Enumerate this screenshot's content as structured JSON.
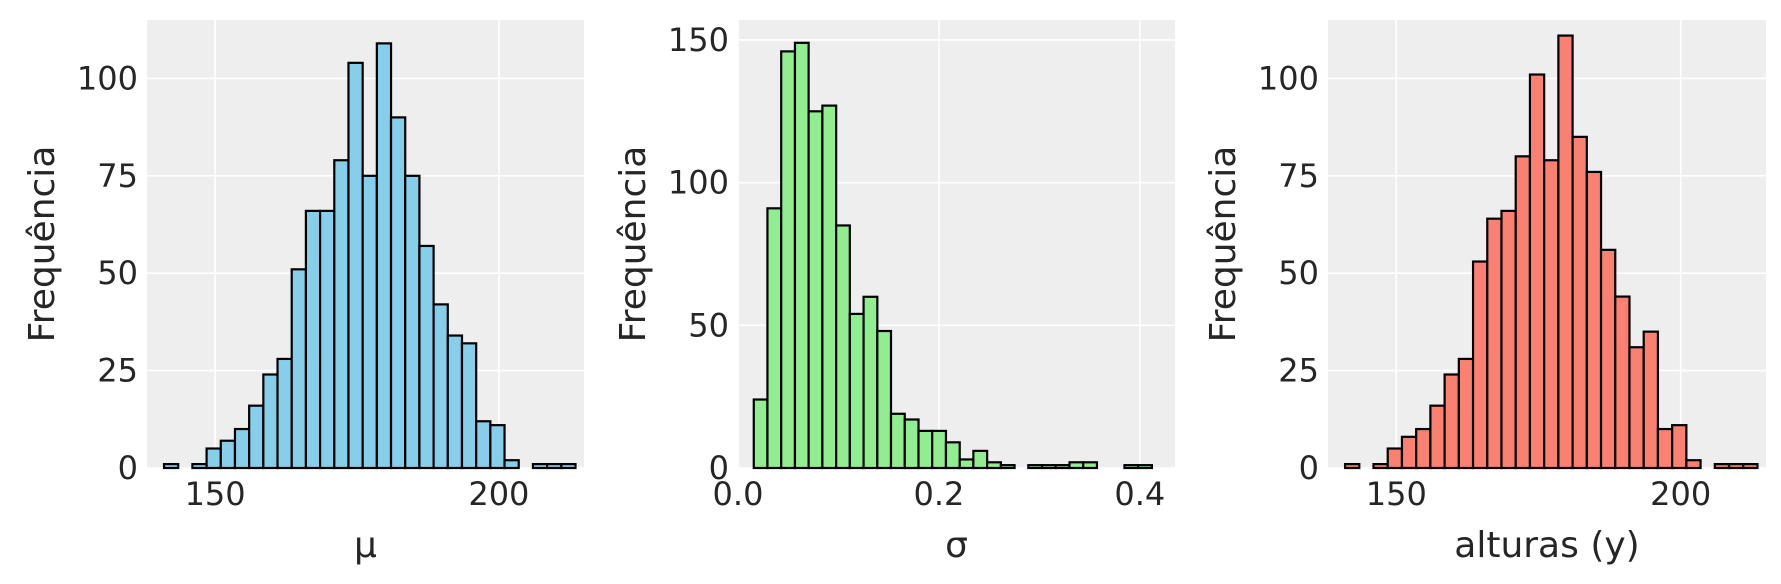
{
  "chart_data": [
    {
      "type": "bar",
      "subtype": "histogram",
      "xlabel": "μ",
      "ylabel": "Frequência",
      "color": "#87ceeb",
      "xlim": [
        138,
        215
      ],
      "ylim": [
        0,
        115
      ],
      "xticks": [
        150,
        200
      ],
      "yticks": [
        0,
        25,
        50,
        75,
        100
      ],
      "grid": true,
      "bins": [
        {
          "x0": 141.0,
          "x1": 143.5,
          "count": 1
        },
        {
          "x0": 143.5,
          "x1": 146.0,
          "count": 0
        },
        {
          "x0": 146.0,
          "x1": 148.5,
          "count": 1
        },
        {
          "x0": 148.5,
          "x1": 151.0,
          "count": 5
        },
        {
          "x0": 151.0,
          "x1": 153.5,
          "count": 7
        },
        {
          "x0": 153.5,
          "x1": 156.0,
          "count": 10
        },
        {
          "x0": 156.0,
          "x1": 158.5,
          "count": 16
        },
        {
          "x0": 158.5,
          "x1": 161.0,
          "count": 24
        },
        {
          "x0": 161.0,
          "x1": 163.5,
          "count": 28
        },
        {
          "x0": 163.5,
          "x1": 166.0,
          "count": 51
        },
        {
          "x0": 166.0,
          "x1": 168.5,
          "count": 66
        },
        {
          "x0": 168.5,
          "x1": 171.0,
          "count": 66
        },
        {
          "x0": 171.0,
          "x1": 173.5,
          "count": 79
        },
        {
          "x0": 173.5,
          "x1": 176.0,
          "count": 104
        },
        {
          "x0": 176.0,
          "x1": 178.5,
          "count": 75
        },
        {
          "x0": 178.5,
          "x1": 181.0,
          "count": 109
        },
        {
          "x0": 181.0,
          "x1": 183.5,
          "count": 90
        },
        {
          "x0": 183.5,
          "x1": 186.0,
          "count": 75
        },
        {
          "x0": 186.0,
          "x1": 188.5,
          "count": 57
        },
        {
          "x0": 188.5,
          "x1": 191.0,
          "count": 42
        },
        {
          "x0": 191.0,
          "x1": 193.5,
          "count": 34
        },
        {
          "x0": 193.5,
          "x1": 196.0,
          "count": 32
        },
        {
          "x0": 196.0,
          "x1": 198.5,
          "count": 12
        },
        {
          "x0": 198.5,
          "x1": 201.0,
          "count": 11
        },
        {
          "x0": 201.0,
          "x1": 203.5,
          "count": 2
        },
        {
          "x0": 203.5,
          "x1": 206.0,
          "count": 0
        },
        {
          "x0": 206.0,
          "x1": 208.5,
          "count": 1
        },
        {
          "x0": 208.5,
          "x1": 211.0,
          "count": 1
        },
        {
          "x0": 211.0,
          "x1": 213.5,
          "count": 1
        }
      ]
    },
    {
      "type": "bar",
      "subtype": "histogram",
      "xlabel": "σ",
      "ylabel": "Frequência",
      "color": "#90ee90",
      "xlim": [
        0.0,
        0.435
      ],
      "ylim": [
        0,
        157
      ],
      "xticks": [
        0.0,
        0.2,
        0.4
      ],
      "yticks": [
        0,
        50,
        100,
        150
      ],
      "grid": true,
      "bins": [
        {
          "x0": 0.0157,
          "x1": 0.0293,
          "count": 24
        },
        {
          "x0": 0.0293,
          "x1": 0.043,
          "count": 91
        },
        {
          "x0": 0.043,
          "x1": 0.0567,
          "count": 146
        },
        {
          "x0": 0.0567,
          "x1": 0.0703,
          "count": 149
        },
        {
          "x0": 0.0703,
          "x1": 0.084,
          "count": 125
        },
        {
          "x0": 0.084,
          "x1": 0.0977,
          "count": 127
        },
        {
          "x0": 0.0977,
          "x1": 0.1113,
          "count": 85
        },
        {
          "x0": 0.1113,
          "x1": 0.125,
          "count": 54
        },
        {
          "x0": 0.125,
          "x1": 0.1387,
          "count": 60
        },
        {
          "x0": 0.1387,
          "x1": 0.1523,
          "count": 48
        },
        {
          "x0": 0.1523,
          "x1": 0.166,
          "count": 19
        },
        {
          "x0": 0.166,
          "x1": 0.1797,
          "count": 17
        },
        {
          "x0": 0.1797,
          "x1": 0.1933,
          "count": 13
        },
        {
          "x0": 0.1933,
          "x1": 0.207,
          "count": 13
        },
        {
          "x0": 0.207,
          "x1": 0.2207,
          "count": 9
        },
        {
          "x0": 0.2207,
          "x1": 0.2343,
          "count": 3
        },
        {
          "x0": 0.2343,
          "x1": 0.248,
          "count": 6
        },
        {
          "x0": 0.248,
          "x1": 0.2617,
          "count": 2
        },
        {
          "x0": 0.2617,
          "x1": 0.2753,
          "count": 1
        },
        {
          "x0": 0.2753,
          "x1": 0.289,
          "count": 0
        },
        {
          "x0": 0.289,
          "x1": 0.3027,
          "count": 1
        },
        {
          "x0": 0.3027,
          "x1": 0.3163,
          "count": 1
        },
        {
          "x0": 0.3163,
          "x1": 0.33,
          "count": 1
        },
        {
          "x0": 0.33,
          "x1": 0.3437,
          "count": 2
        },
        {
          "x0": 0.3437,
          "x1": 0.3573,
          "count": 2
        },
        {
          "x0": 0.3573,
          "x1": 0.371,
          "count": 0
        },
        {
          "x0": 0.371,
          "x1": 0.3847,
          "count": 0
        },
        {
          "x0": 0.3847,
          "x1": 0.3983,
          "count": 1
        },
        {
          "x0": 0.3983,
          "x1": 0.412,
          "count": 1
        }
      ]
    },
    {
      "type": "bar",
      "subtype": "histogram",
      "xlabel": "alturas (y)",
      "ylabel": "Frequência",
      "color": "#fa8072",
      "xlim": [
        138,
        215
      ],
      "ylim": [
        0,
        115
      ],
      "xticks": [
        150,
        200
      ],
      "yticks": [
        0,
        25,
        50,
        75,
        100
      ],
      "grid": true,
      "bins": [
        {
          "x0": 141.0,
          "x1": 143.5,
          "count": 1
        },
        {
          "x0": 143.5,
          "x1": 146.0,
          "count": 0
        },
        {
          "x0": 146.0,
          "x1": 148.5,
          "count": 1
        },
        {
          "x0": 148.5,
          "x1": 151.0,
          "count": 5
        },
        {
          "x0": 151.0,
          "x1": 153.5,
          "count": 8
        },
        {
          "x0": 153.5,
          "x1": 156.0,
          "count": 10
        },
        {
          "x0": 156.0,
          "x1": 158.5,
          "count": 16
        },
        {
          "x0": 158.5,
          "x1": 161.0,
          "count": 24
        },
        {
          "x0": 161.0,
          "x1": 163.5,
          "count": 28
        },
        {
          "x0": 163.5,
          "x1": 166.0,
          "count": 53
        },
        {
          "x0": 166.0,
          "x1": 168.5,
          "count": 64
        },
        {
          "x0": 168.5,
          "x1": 171.0,
          "count": 66
        },
        {
          "x0": 171.0,
          "x1": 173.5,
          "count": 80
        },
        {
          "x0": 173.5,
          "x1": 176.0,
          "count": 101
        },
        {
          "x0": 176.0,
          "x1": 178.5,
          "count": 79
        },
        {
          "x0": 178.5,
          "x1": 181.0,
          "count": 111
        },
        {
          "x0": 181.0,
          "x1": 183.5,
          "count": 85
        },
        {
          "x0": 183.5,
          "x1": 186.0,
          "count": 76
        },
        {
          "x0": 186.0,
          "x1": 188.5,
          "count": 56
        },
        {
          "x0": 188.5,
          "x1": 191.0,
          "count": 44
        },
        {
          "x0": 191.0,
          "x1": 193.5,
          "count": 31
        },
        {
          "x0": 193.5,
          "x1": 196.0,
          "count": 35
        },
        {
          "x0": 196.0,
          "x1": 198.5,
          "count": 10
        },
        {
          "x0": 198.5,
          "x1": 201.0,
          "count": 11
        },
        {
          "x0": 201.0,
          "x1": 203.5,
          "count": 2
        },
        {
          "x0": 203.5,
          "x1": 206.0,
          "count": 0
        },
        {
          "x0": 206.0,
          "x1": 208.5,
          "count": 1
        },
        {
          "x0": 208.5,
          "x1": 211.0,
          "count": 1
        },
        {
          "x0": 211.0,
          "x1": 213.5,
          "count": 1
        }
      ]
    }
  ]
}
